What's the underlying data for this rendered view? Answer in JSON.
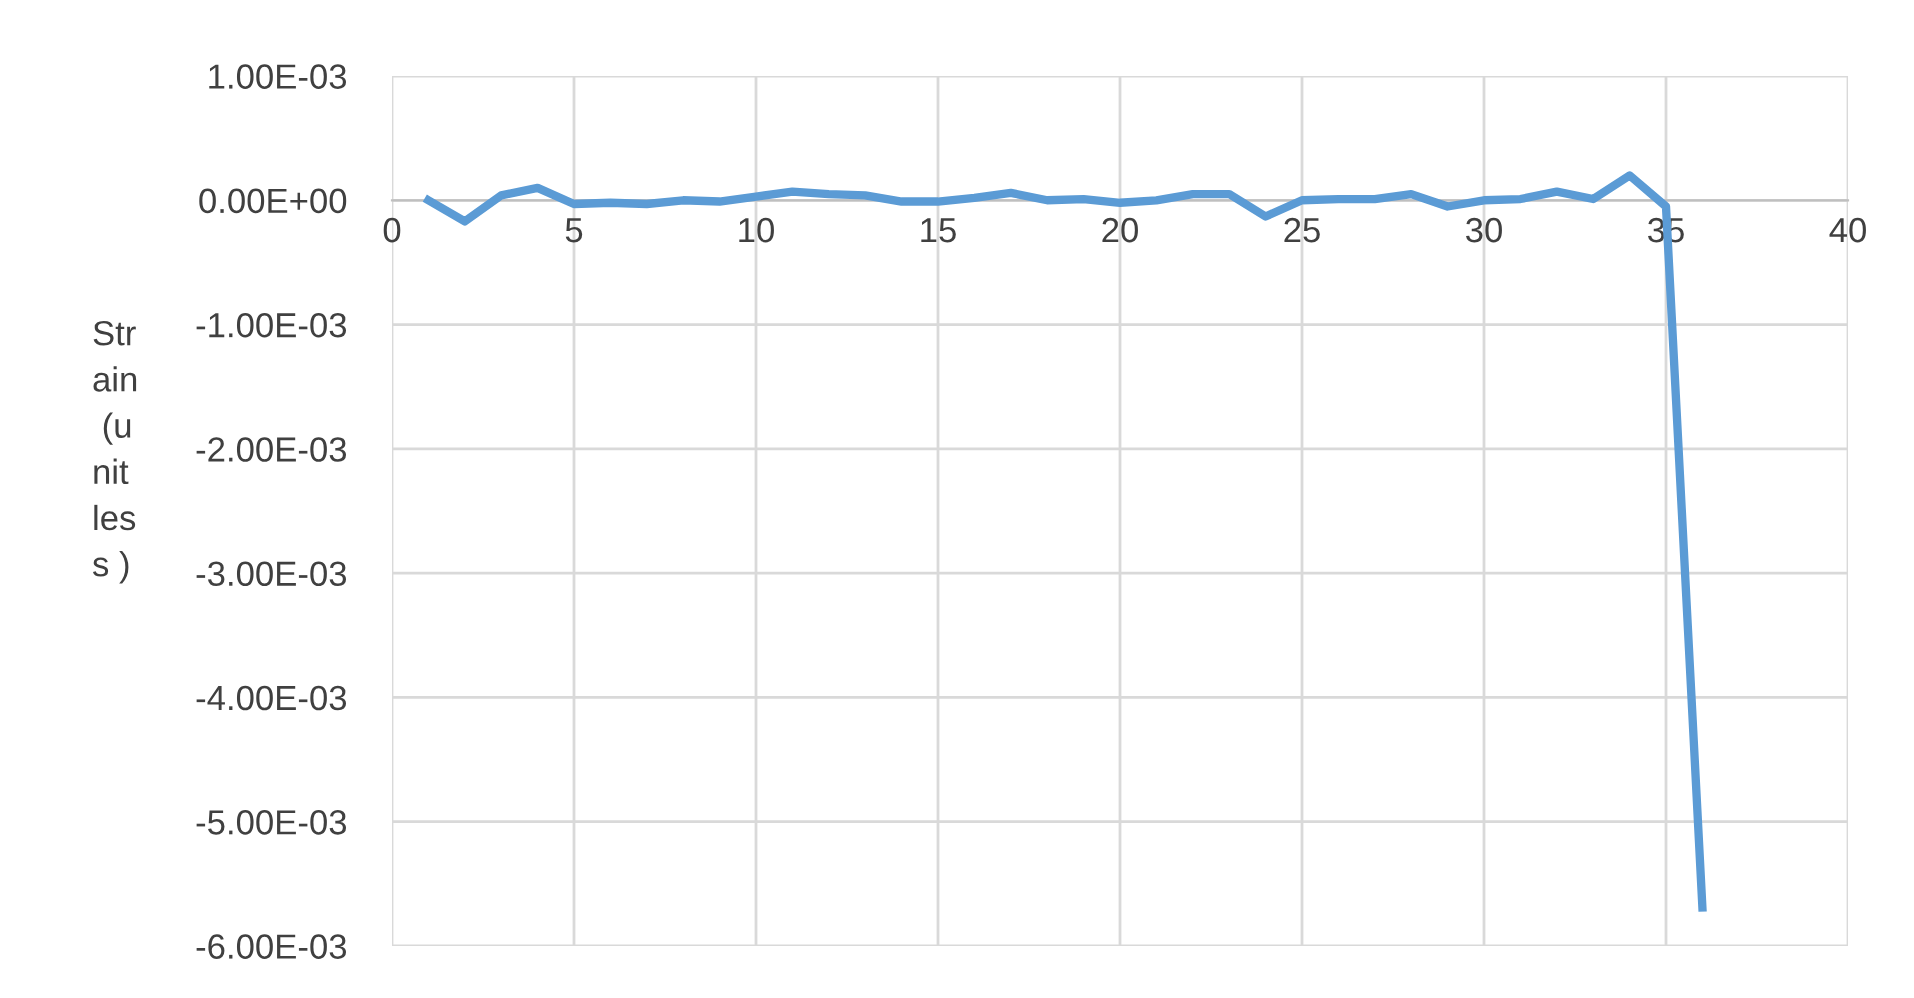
{
  "chart_data": {
    "type": "line",
    "ylabel": "Strain (unitless )",
    "x": [
      1,
      2,
      3,
      4,
      5,
      6,
      7,
      8,
      9,
      10,
      11,
      12,
      13,
      14,
      15,
      16,
      17,
      18,
      19,
      20,
      21,
      22,
      23,
      24,
      25,
      26,
      27,
      28,
      29,
      30,
      31,
      32,
      33,
      34,
      35,
      36
    ],
    "series": [
      {
        "color": "#5b9bd5",
        "values": [
          0,
          -0.00017,
          4e-05,
          0.0001,
          -3e-05,
          -2e-05,
          -3e-05,
          0,
          -1e-05,
          3e-05,
          7e-05,
          5e-05,
          4e-05,
          -1e-05,
          -1e-05,
          2e-05,
          6e-05,
          0,
          1e-05,
          -2e-05,
          0,
          5e-05,
          5e-05,
          -0.00013,
          0,
          1e-05,
          1e-05,
          5e-05,
          -5e-05,
          0,
          1e-05,
          7e-05,
          1e-05,
          0.0002,
          -5e-05,
          -0.00569
        ]
      }
    ],
    "xlim": [
      0,
      40
    ],
    "xticks": [
      0,
      5,
      10,
      15,
      20,
      25,
      30,
      35,
      40
    ],
    "ylim": [
      -0.006,
      0.001
    ],
    "yticks": [
      {
        "value": 0.001,
        "label": "1.00E-03"
      },
      {
        "value": 0,
        "label": "0.00E+00"
      },
      {
        "value": -0.001,
        "label": "-1.00E-03"
      },
      {
        "value": -0.002,
        "label": "-2.00E-03"
      },
      {
        "value": -0.003,
        "label": "-3.00E-03"
      },
      {
        "value": -0.004,
        "label": "-4.00E-03"
      },
      {
        "value": -0.005,
        "label": "-5.00E-03"
      },
      {
        "value": -0.006,
        "label": "-6.00E-03"
      }
    ],
    "grid": true,
    "marker": "none",
    "line_style": "solid"
  }
}
